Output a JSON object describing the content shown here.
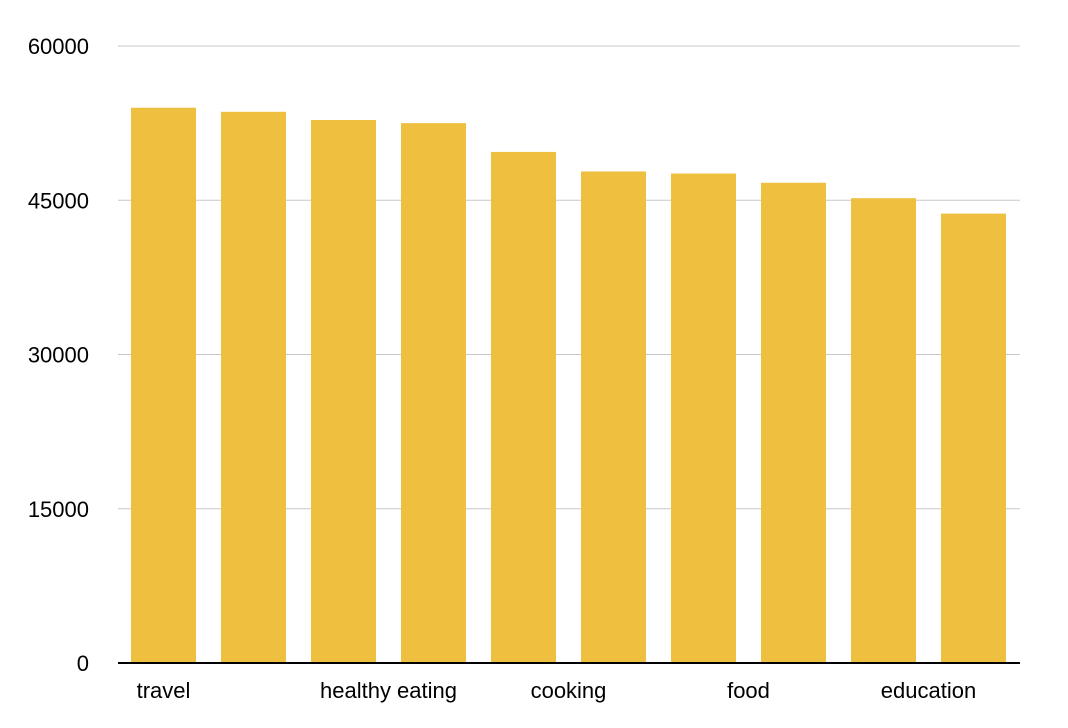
{
  "chart_data": {
    "type": "bar",
    "categories": [
      "travel",
      "",
      "healthy eating",
      "",
      "cooking",
      "",
      "food",
      "",
      "education",
      ""
    ],
    "values": [
      54000,
      53600,
      52800,
      52500,
      49700,
      47800,
      47600,
      46700,
      45200,
      43700
    ],
    "ylim": [
      0,
      60000
    ],
    "yticks": [
      0,
      15000,
      30000,
      45000,
      60000
    ],
    "grid": true,
    "legend": "none",
    "colors": {
      "bar": "#EFBF40",
      "grid": "#C8C8C8",
      "axis": "#000000"
    }
  }
}
